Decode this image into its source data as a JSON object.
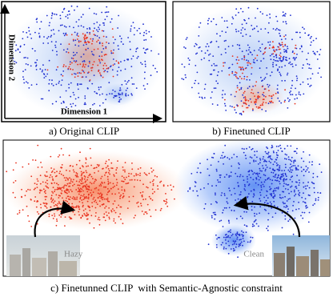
{
  "panels": [
    {
      "caption": "a) Original CLIP",
      "x_axis_label": "Dimension 1",
      "y_axis_label": "Dimension 2"
    },
    {
      "caption": "b) Finetuned CLIP"
    },
    {
      "caption": "c) Finetunned CLIP  with Semantic-Agnostic constraint",
      "labels": [
        "Hazy",
        "Clean"
      ]
    }
  ]
}
